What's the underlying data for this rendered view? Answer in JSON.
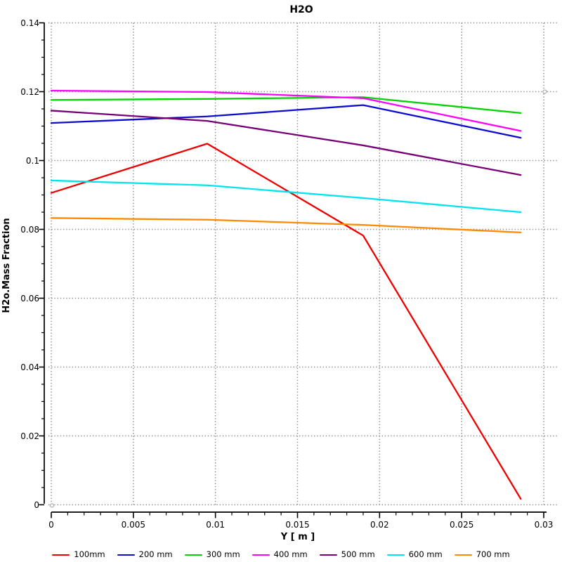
{
  "window": {
    "title": "H2O"
  },
  "chart_data": {
    "type": "line",
    "title": "H2O",
    "xlabel": "Y [ m ]",
    "ylabel": "H2o.Mass Fraction",
    "xlim": [
      0,
      0.03
    ],
    "ylim": [
      0,
      0.14
    ],
    "grid": "dotted",
    "grid_color": "#8f8f8f",
    "legend_position": "bottom",
    "x_ticks": [
      0,
      0.005,
      0.01,
      0.015,
      0.02,
      0.025,
      0.03
    ],
    "x_tick_labels": [
      "0",
      "0.005",
      "0.01",
      "0.015",
      "0.02",
      "0.025",
      "0.03"
    ],
    "x_minor_step": 0.001,
    "y_ticks": [
      0,
      0.02,
      0.04,
      0.06,
      0.08,
      0.1,
      0.12,
      0.14
    ],
    "y_tick_labels": [
      "0",
      "0.02",
      "0.04",
      "0.06",
      "0.08",
      "0.1",
      "0.12",
      "0.14"
    ],
    "y_minor_step": 0.005,
    "x": [
      0,
      0.0095,
      0.019,
      0.0286
    ],
    "series": [
      {
        "name": "100mm",
        "color": "#ee0000",
        "values": [
          0.0906,
          0.1049,
          0.0782,
          0.0017
        ]
      },
      {
        "name": "200 mm",
        "color": "#0d0dd0",
        "values": [
          0.1109,
          0.1128,
          0.1161,
          0.1066
        ]
      },
      {
        "name": "300 mm",
        "color": "#00d400",
        "values": [
          0.1176,
          0.1179,
          0.1184,
          0.1138
        ]
      },
      {
        "name": "400 mm",
        "color": "#ff00ff",
        "values": [
          0.1203,
          0.1199,
          0.1181,
          0.1086
        ]
      },
      {
        "name": "500 mm",
        "color": "#770077",
        "values": [
          0.1145,
          0.1115,
          0.1044,
          0.0958
        ]
      },
      {
        "name": "600 mm",
        "color": "#00e4ee",
        "values": [
          0.0942,
          0.0928,
          0.0891,
          0.085
        ]
      },
      {
        "name": "700 mm",
        "color": "#ff8a00",
        "values": [
          0.0833,
          0.0828,
          0.0813,
          0.0791
        ]
      }
    ]
  }
}
